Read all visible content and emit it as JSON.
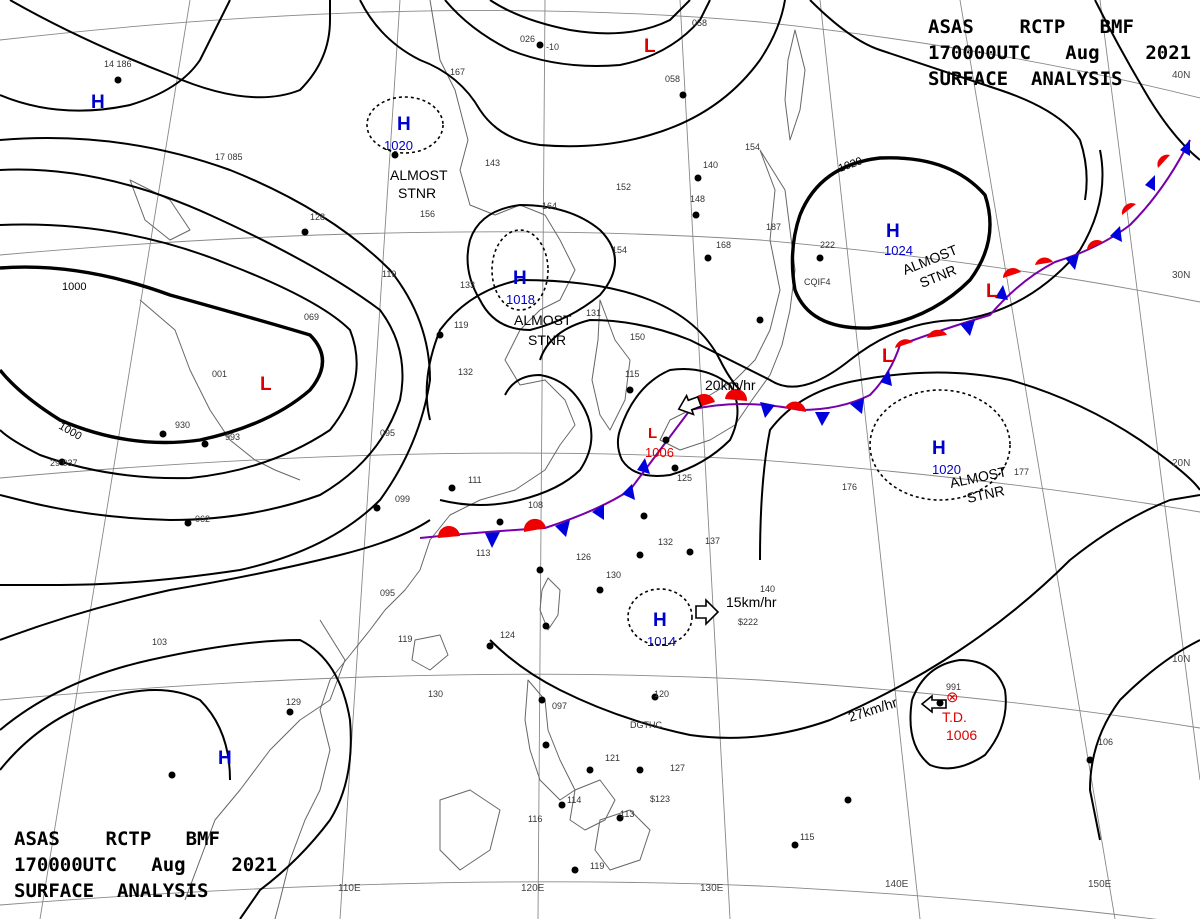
{
  "header": {
    "line1": "ASAS    RCTP   BMF",
    "line2": "170000UTC   Aug    2021",
    "line3": "SURFACE  ANALYSIS"
  },
  "colors": {
    "high": "#0000cc",
    "low": "#dd0000",
    "front_warm": "#ee0000",
    "front_cold": "#0000dd",
    "isobar": "#000000",
    "coast": "#666666",
    "grid": "#888888"
  },
  "lat_labels": [
    "40N",
    "30N",
    "20N",
    "10N"
  ],
  "lon_labels": [
    "110E",
    "120E",
    "130E",
    "140E",
    "150E"
  ],
  "isobar_labels": [
    "1000",
    "1000",
    "1020"
  ],
  "pressure_centers": [
    {
      "type": "H",
      "value": ""
    },
    {
      "type": "H",
      "value": "1020"
    },
    {
      "type": "H",
      "value": "1018"
    },
    {
      "type": "H",
      "value": "1024"
    },
    {
      "type": "H",
      "value": "1020"
    },
    {
      "type": "H",
      "value": "1014"
    },
    {
      "type": "H",
      "value": ""
    },
    {
      "type": "L",
      "value": ""
    },
    {
      "type": "L",
      "value": ""
    },
    {
      "type": "L",
      "value": "1006"
    },
    {
      "type": "L",
      "value": ""
    },
    {
      "type": "L",
      "value": ""
    }
  ],
  "annotations": {
    "almost_stnr": [
      "ALMOST",
      "STNR"
    ],
    "td_label": "T.D.",
    "td_value": "1006",
    "motion_1": "20km/hr",
    "motion_2": "15km/hr",
    "motion_3": "27km/hr"
  },
  "stations": [
    "14 186",
    "026",
    "-10",
    "058",
    "058",
    "167",
    "17 085",
    "143",
    "140",
    "154",
    "152",
    "164",
    "148",
    "128",
    "156",
    "154",
    "168",
    "187",
    "222",
    "CQIF4",
    "119",
    "133",
    "119",
    "131",
    "150",
    "132",
    "115",
    "001",
    "069",
    "095",
    "993",
    "930",
    "29 037",
    "062",
    "111",
    "108",
    "125",
    "099",
    "113",
    "126",
    "132",
    "137",
    "130",
    "140",
    "$222",
    "176",
    "177",
    "095",
    "119",
    "124",
    "103",
    "129",
    "130",
    "120",
    "DGTHC",
    "097",
    "121",
    "127",
    "114",
    "113",
    "115",
    "106",
    "116",
    "119",
    "991",
    "$123"
  ]
}
